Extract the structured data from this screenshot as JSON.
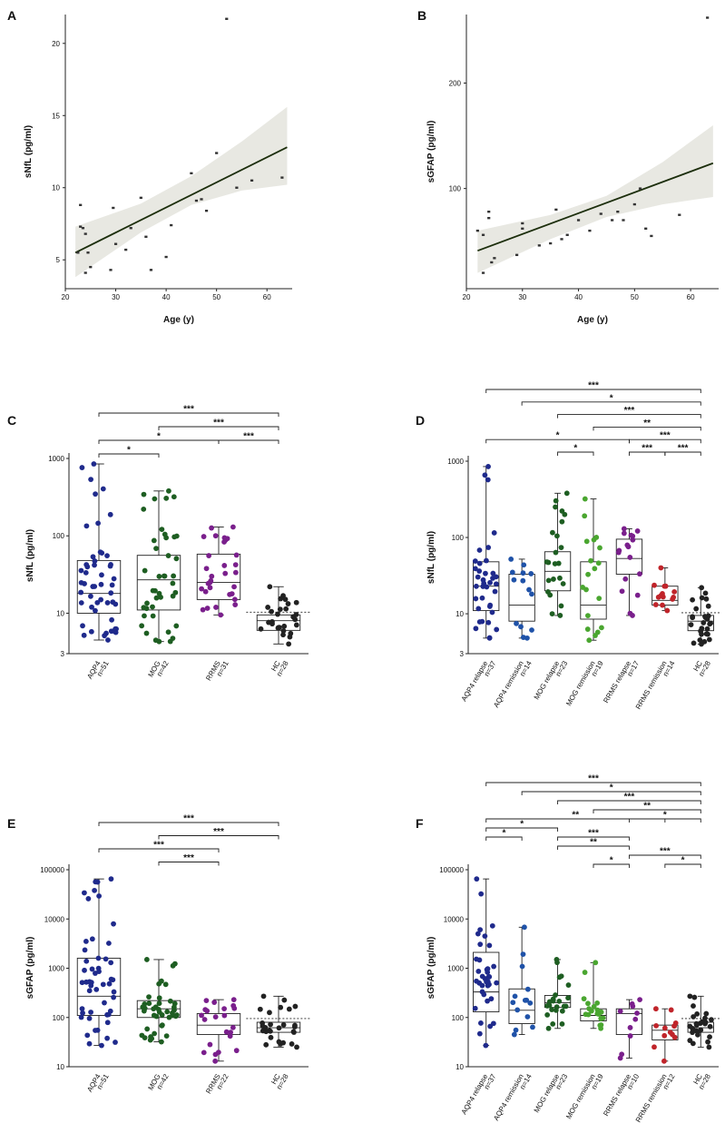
{
  "chart_data": [
    {
      "panel": "A",
      "type": "scatter",
      "xlabel": "Age (y)",
      "ylabel": "sNfL (pg/ml)",
      "xlim": [
        20,
        65
      ],
      "ylim": [
        3,
        22
      ],
      "xticks": [
        20,
        30,
        40,
        50,
        60
      ],
      "yticks": [
        5,
        10,
        15,
        20
      ],
      "points": [
        [
          22.5,
          5.5
        ],
        [
          23,
          8.8
        ],
        [
          23,
          7.3
        ],
        [
          23.5,
          7.2
        ],
        [
          24,
          6.8
        ],
        [
          24,
          4.1
        ],
        [
          24.5,
          5.5
        ],
        [
          25,
          4.5
        ],
        [
          29,
          4.3
        ],
        [
          29.5,
          8.6
        ],
        [
          30,
          6.1
        ],
        [
          32,
          5.7
        ],
        [
          33,
          7.2
        ],
        [
          35,
          9.3
        ],
        [
          36,
          6.6
        ],
        [
          37,
          4.3
        ],
        [
          40,
          5.2
        ],
        [
          41,
          7.4
        ],
        [
          45,
          11
        ],
        [
          46,
          9.1
        ],
        [
          47,
          9.2
        ],
        [
          48,
          8.4
        ],
        [
          50,
          12.4
        ],
        [
          52,
          21.7
        ],
        [
          54,
          10
        ],
        [
          57,
          10.5
        ],
        [
          63,
          10.7
        ]
      ],
      "fit": {
        "x": [
          22,
          64
        ],
        "y": [
          5.5,
          12.8
        ]
      },
      "ci_upper": [
        [
          22,
          7.3
        ],
        [
          35,
          8.9
        ],
        [
          45,
          10.8
        ],
        [
          55,
          13.2
        ],
        [
          64,
          15.6
        ]
      ],
      "ci_lower": [
        [
          22,
          3.8
        ],
        [
          35,
          6.9
        ],
        [
          45,
          8.8
        ],
        [
          55,
          9.8
        ],
        [
          64,
          10.2
        ]
      ]
    },
    {
      "panel": "B",
      "type": "scatter",
      "xlabel": "Age (y)",
      "ylabel": "sGFAP (pg/ml)",
      "xlim": [
        20,
        65
      ],
      "ylim": [
        5,
        265
      ],
      "xticks": [
        20,
        30,
        40,
        50,
        60
      ],
      "yticks": [
        100,
        200
      ],
      "points": [
        [
          22,
          60
        ],
        [
          23,
          56
        ],
        [
          23,
          20
        ],
        [
          24,
          78
        ],
        [
          24,
          72
        ],
        [
          24.5,
          30
        ],
        [
          25,
          34
        ],
        [
          29,
          37
        ],
        [
          30,
          62
        ],
        [
          30,
          67
        ],
        [
          33,
          46
        ],
        [
          35,
          48
        ],
        [
          36,
          80
        ],
        [
          37,
          52
        ],
        [
          38,
          56
        ],
        [
          40,
          70
        ],
        [
          42,
          60
        ],
        [
          44,
          76
        ],
        [
          46,
          70
        ],
        [
          47,
          78
        ],
        [
          48,
          70
        ],
        [
          50,
          85
        ],
        [
          51,
          100
        ],
        [
          52,
          62
        ],
        [
          53,
          55
        ],
        [
          58,
          75
        ],
        [
          63,
          262
        ]
      ],
      "fit": {
        "x": [
          22,
          64
        ],
        "y": [
          41,
          124
        ]
      },
      "ci_upper": [
        [
          22,
          60
        ],
        [
          35,
          75
        ],
        [
          45,
          93
        ],
        [
          55,
          125
        ],
        [
          64,
          160
        ]
      ],
      "ci_lower": [
        [
          22,
          20
        ],
        [
          35,
          52
        ],
        [
          45,
          73
        ],
        [
          55,
          85
        ],
        [
          64,
          92
        ]
      ]
    },
    {
      "panel": "C",
      "type": "box",
      "ylabel": "sNfL (pg/ml)",
      "scale": "log",
      "ylim": [
        3,
        1000
      ],
      "yticks": [
        "1000",
        "100",
        "10",
        "3"
      ],
      "ytick_values": [
        1000,
        100,
        10,
        3
      ],
      "categories": [
        "AQP4",
        "MOG",
        "RRMS",
        "HC"
      ],
      "n_labels": [
        "n=51",
        "n=42",
        "n=31",
        "n=28"
      ],
      "colors": [
        "#1f2a8c",
        "#1e5e22",
        "#7a1f8c",
        "#222222"
      ],
      "counts": [
        51,
        42,
        31,
        28
      ],
      "stats": [
        [
          4.5,
          10,
          18,
          48,
          850
        ],
        [
          4.3,
          11,
          27,
          56,
          380
        ],
        [
          9.5,
          15,
          25,
          58,
          130
        ],
        [
          4.0,
          6,
          8,
          9.5,
          22
        ]
      ],
      "hc_mean": 10.3,
      "significance": [
        {
          "from": 0,
          "to": 3,
          "label": "***",
          "level": 0
        },
        {
          "from": 1,
          "to": 3,
          "label": "***",
          "level": 1
        },
        {
          "from": 0,
          "to": 2,
          "label": "*",
          "level": 2
        },
        {
          "from": 2,
          "to": 3,
          "label": "***",
          "level": 2
        },
        {
          "from": 0,
          "to": 1,
          "label": "*",
          "level": 3
        }
      ]
    },
    {
      "panel": "D",
      "type": "box",
      "ylabel": "sNfL (pg/ml)",
      "scale": "log",
      "ylim": [
        3,
        1000
      ],
      "yticks": [
        "1000",
        "100",
        "10",
        "3"
      ],
      "ytick_values": [
        1000,
        100,
        10,
        3
      ],
      "categories": [
        "AQP4 relapse",
        "AQP4 remission",
        "MOG relapse",
        "MOG remission",
        "RRMS relapse",
        "RRMS remission",
        "HC"
      ],
      "n_labels": [
        "n=37",
        "n=14",
        "n=23",
        "n=19",
        "n=17",
        "n=14",
        "n=28"
      ],
      "colors": [
        "#1f2a8c",
        "#1f52a8",
        "#1e5e22",
        "#4aa630",
        "#7a1f8c",
        "#c0242a",
        "#222222"
      ],
      "counts": [
        37,
        14,
        23,
        19,
        17,
        14,
        28
      ],
      "stats": [
        [
          4.8,
          11,
          23,
          48,
          850
        ],
        [
          4.8,
          8,
          13,
          33,
          52
        ],
        [
          9.5,
          20,
          36,
          65,
          380
        ],
        [
          4.5,
          8.5,
          13,
          48,
          320
        ],
        [
          9.5,
          33,
          53,
          95,
          130
        ],
        [
          11,
          13,
          15,
          23,
          40
        ],
        [
          4.0,
          6,
          8,
          9.5,
          22
        ]
      ],
      "hc_mean": 10.3,
      "significance": [
        {
          "from": 0,
          "to": 6,
          "label": "***",
          "level": 0
        },
        {
          "from": 1,
          "to": 6,
          "label": "*",
          "level": 1
        },
        {
          "from": 2,
          "to": 6,
          "label": "***",
          "level": 2
        },
        {
          "from": 3,
          "to": 6,
          "label": "**",
          "level": 3
        },
        {
          "from": 0,
          "to": 4,
          "label": "*",
          "level": 4
        },
        {
          "from": 4,
          "to": 6,
          "label": "***",
          "level": 4
        },
        {
          "from": 2,
          "to": 3,
          "label": "*",
          "level": 5
        },
        {
          "from": 4,
          "to": 5,
          "label": "***",
          "level": 5
        },
        {
          "from": 5,
          "to": 6,
          "label": "***",
          "level": 5
        }
      ]
    },
    {
      "panel": "E",
      "type": "box",
      "ylabel": "sGFAP (pg/ml)",
      "scale": "log",
      "ylim": [
        10,
        100000
      ],
      "yticks": [
        "100000",
        "10000",
        "1000",
        "100",
        "10"
      ],
      "ytick_values": [
        100000,
        10000,
        1000,
        100,
        10
      ],
      "categories": [
        "AQP4",
        "MOG",
        "RRMS",
        "HC"
      ],
      "n_labels": [
        "n=51",
        "n=42",
        "n=22",
        "n=28"
      ],
      "colors": [
        "#1f2a8c",
        "#1e5e22",
        "#7a1f8c",
        "#222222"
      ],
      "counts": [
        51,
        42,
        22,
        28
      ],
      "stats": [
        [
          27,
          110,
          270,
          1600,
          65000
        ],
        [
          32,
          100,
          150,
          220,
          1500
        ],
        [
          13,
          45,
          70,
          120,
          230
        ],
        [
          25,
          50,
          62,
          80,
          270
        ]
      ],
      "hc_mean": 95,
      "significance": [
        {
          "from": 0,
          "to": 3,
          "label": "***",
          "level": 0
        },
        {
          "from": 1,
          "to": 3,
          "label": "***",
          "level": 1
        },
        {
          "from": 0,
          "to": 2,
          "label": "***",
          "level": 2
        },
        {
          "from": 1,
          "to": 2,
          "label": "***",
          "level": 3
        }
      ]
    },
    {
      "panel": "F",
      "type": "box",
      "ylabel": "sGFAP (pg/ml)",
      "scale": "log",
      "ylim": [
        10,
        100000
      ],
      "yticks": [
        "100000",
        "10000",
        "1000",
        "100",
        "10"
      ],
      "ytick_values": [
        100000,
        10000,
        1000,
        100,
        10
      ],
      "categories": [
        "AQP4 relapse",
        "AQP4 remission",
        "MOG relapse",
        "MOG remission",
        "RRMS relapse",
        "RRMS remission",
        "HC"
      ],
      "n_labels": [
        "n=37",
        "n=14",
        "n=23",
        "n=19",
        "n=10",
        "n=12",
        "n=28"
      ],
      "colors": [
        "#1f2a8c",
        "#1f52a8",
        "#1e5e22",
        "#4aa630",
        "#7a1f8c",
        "#c0242a",
        "#222222"
      ],
      "counts": [
        37,
        14,
        23,
        19,
        10,
        12,
        28
      ],
      "stats": [
        [
          27,
          130,
          330,
          2100,
          65000
        ],
        [
          45,
          75,
          140,
          380,
          6800
        ],
        [
          60,
          160,
          200,
          280,
          1500
        ],
        [
          60,
          85,
          110,
          150,
          1300
        ],
        [
          15,
          45,
          120,
          150,
          230
        ],
        [
          13,
          35,
          55,
          70,
          150
        ],
        [
          25,
          50,
          62,
          80,
          270
        ]
      ],
      "hc_mean": 95,
      "significance": [
        {
          "from": 0,
          "to": 6,
          "label": "***",
          "level": 0
        },
        {
          "from": 1,
          "to": 6,
          "label": "*",
          "level": 1
        },
        {
          "from": 2,
          "to": 6,
          "label": "***",
          "level": 2
        },
        {
          "from": 3,
          "to": 6,
          "label": "**",
          "level": 3
        },
        {
          "from": 0,
          "to": 5,
          "label": "**",
          "level": 4
        },
        {
          "from": 4,
          "to": 6,
          "label": "*",
          "level": 4
        },
        {
          "from": 0,
          "to": 2,
          "label": "*",
          "level": 5
        },
        {
          "from": 0,
          "to": 1,
          "label": "*",
          "level": 6
        },
        {
          "from": 2,
          "to": 4,
          "label": "***",
          "level": 6
        },
        {
          "from": 2,
          "to": 4,
          "label": "**",
          "level": 7
        },
        {
          "from": 4,
          "to": 6,
          "label": "***",
          "level": 8
        },
        {
          "from": 3,
          "to": 4,
          "label": "*",
          "level": 9
        },
        {
          "from": 5,
          "to": 6,
          "label": "*",
          "level": 9
        }
      ]
    }
  ]
}
